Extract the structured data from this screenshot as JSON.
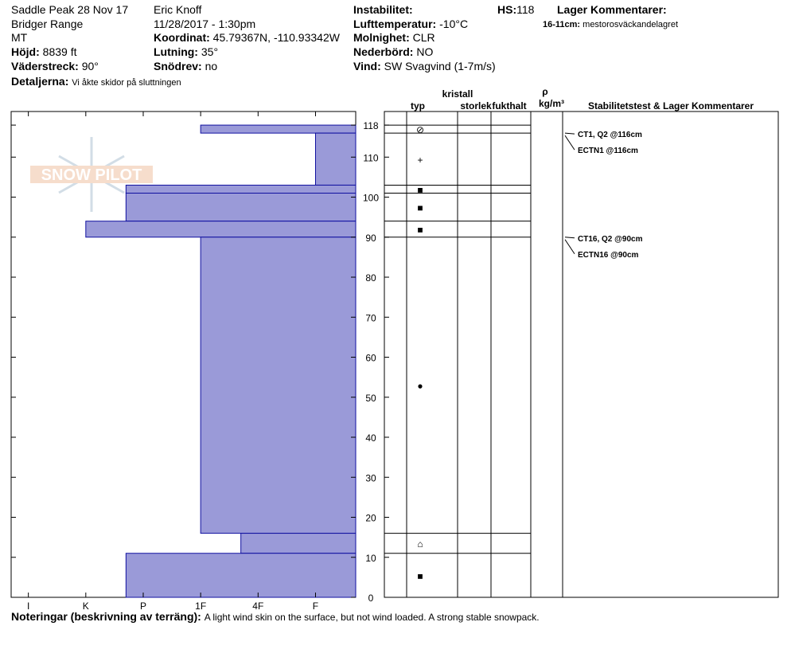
{
  "header": {
    "site": "Saddle Peak 28 Nov 17",
    "range": "Bridger Range",
    "state": "MT",
    "observer": "Eric Knoff",
    "datetime": "11/28/2017 - 1:30pm",
    "elevation": {
      "label": "Höjd:",
      "value": "8839 ft"
    },
    "aspect": {
      "label": "Väderstreck:",
      "value": "90°"
    },
    "details": {
      "label": "Detaljerna:",
      "value": "Vi åkte skidor på sluttningen"
    },
    "coordinates": {
      "label": "Koordinat:",
      "value": "45.79367N, -110.93342W"
    },
    "slope": {
      "label": "Lutning:",
      "value": "35°"
    },
    "wind_loading": {
      "label": "Snödrev:",
      "value": "no"
    },
    "instability": {
      "label": "Instabilitet:"
    },
    "air_temp": {
      "label": "Lufttemperatur:",
      "value": "-10°C"
    },
    "sky": {
      "label": "Molnighet:",
      "value": "CLR"
    },
    "precip": {
      "label": "Nederbörd:",
      "value": "NO"
    },
    "wind": {
      "label": "Vind:",
      "value": "SW Svagvind (1-7m/s)"
    },
    "hs": {
      "label": "HS:",
      "value": 118
    },
    "layer_comments": {
      "title": "Lager Kommentarer:",
      "range": "16-11cm:",
      "text": "mestorosväckandelagret"
    }
  },
  "logo": "SNOW PILOT",
  "chart_data": {
    "type": "snow-profile",
    "color": "#9a9ad8",
    "xlim": [
      0.7,
      6.7
    ],
    "xticks": [
      {
        "value": 1,
        "label": "I"
      },
      {
        "value": 2,
        "label": "K"
      },
      {
        "value": 3,
        "label": "P"
      },
      {
        "value": 4,
        "label": "1F"
      },
      {
        "value": 5,
        "label": "4F"
      },
      {
        "value": 6,
        "label": "F"
      }
    ],
    "ylim": [
      0,
      121.4
    ],
    "yticks": [
      0,
      10,
      20,
      30,
      40,
      50,
      60,
      70,
      80,
      90,
      100,
      110,
      118
    ],
    "layers": [
      {
        "top": 118,
        "bottom": 116,
        "hardness": 4,
        "grain": "⊘"
      },
      {
        "top": 116,
        "bottom": 103,
        "hardness": 6,
        "grain": "+"
      },
      {
        "top": 103,
        "bottom": 101,
        "hardness": 2.7,
        "grain": "■"
      },
      {
        "top": 101,
        "bottom": 94,
        "hardness": 2.7,
        "grain": "■"
      },
      {
        "top": 94,
        "bottom": 90,
        "hardness": 2,
        "grain": "■"
      },
      {
        "top": 90,
        "bottom": 16,
        "hardness": 4,
        "grain": "●"
      },
      {
        "top": 16,
        "bottom": 11,
        "hardness": 4.7,
        "grain": "⌂"
      },
      {
        "top": 11,
        "bottom": 0,
        "hardness": 2.7,
        "grain": "■"
      }
    ],
    "columns": {
      "type": "typ",
      "crystal": "kristall",
      "size": "storlek",
      "moisture": "fukthalt",
      "density": "ρ",
      "density_unit": "kg/m³",
      "tests": "Stabilitetstest & Lager Kommentarer"
    },
    "tests": [
      {
        "label": "CT1, Q2 @116cm",
        "depth": 116
      },
      {
        "label": "ECTN1 @116cm",
        "depth": 116
      },
      {
        "label": "CT16, Q2 @90cm",
        "depth": 90
      },
      {
        "label": "ECTN16 @90cm",
        "depth": 90
      }
    ]
  },
  "notes": {
    "label": "Noteringar (beskrivning av terräng):",
    "text": "A light wind skin on the surface, but not wind loaded. A strong stable snowpack."
  }
}
